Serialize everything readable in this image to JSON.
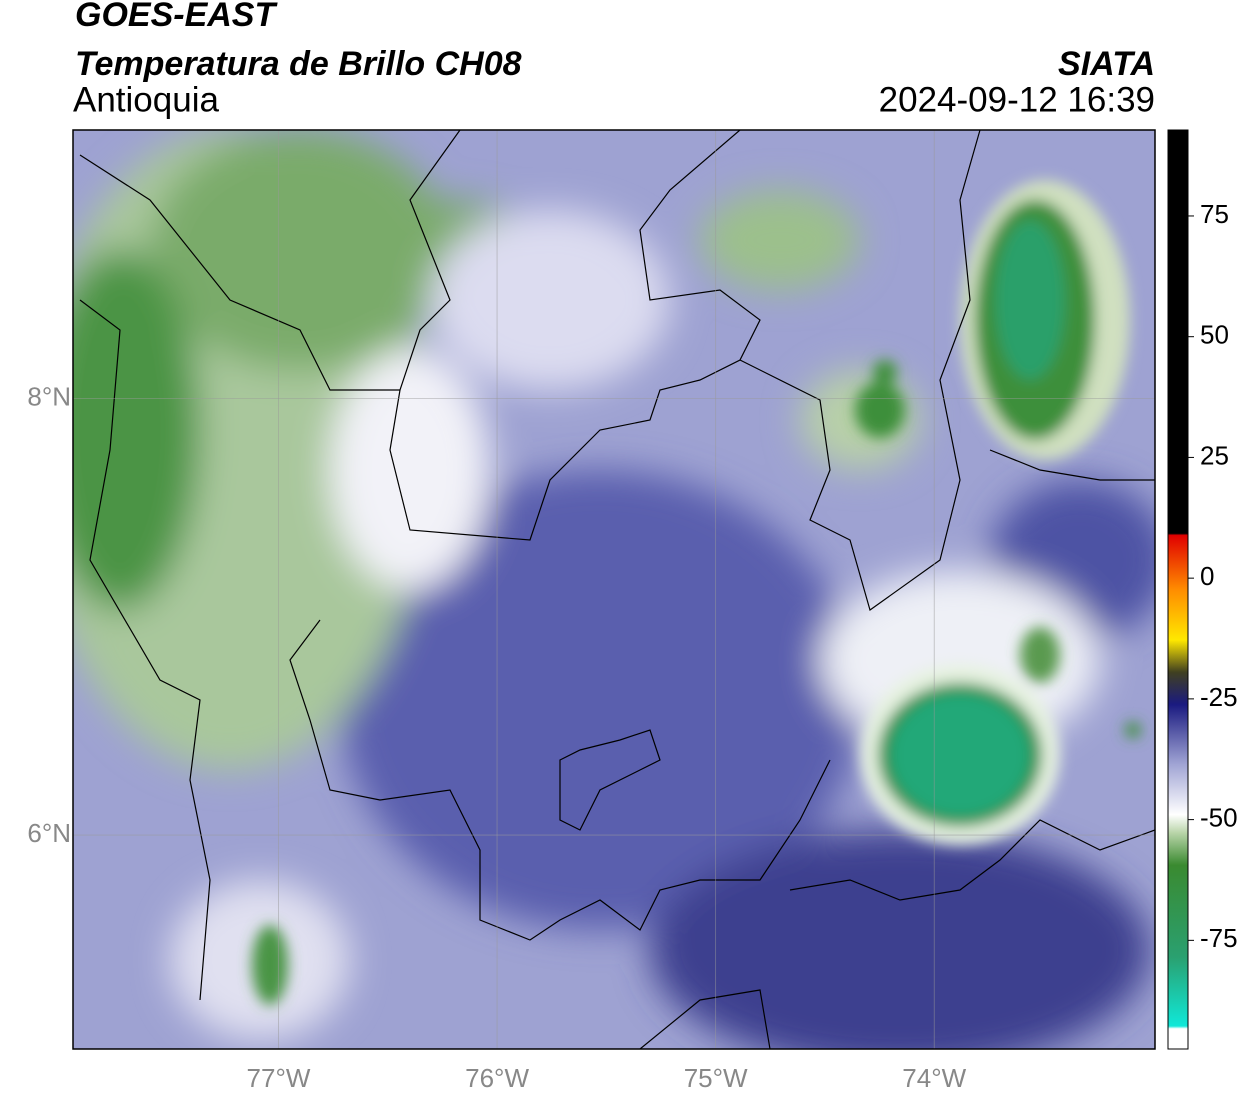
{
  "header": {
    "title": "GOES-EAST",
    "subtitle": "Temperatura de Brillo CH08",
    "region": "Antioquia",
    "source": "SIATA",
    "timestamp": "2024-09-12 16:39"
  },
  "map": {
    "lonlim": [
      -77.94,
      -72.99
    ],
    "latlim": [
      5.02,
      9.23
    ],
    "lon_ticks": [
      {
        "value": -77,
        "label": "77°W"
      },
      {
        "value": -76,
        "label": "76°W"
      },
      {
        "value": -75,
        "label": "75°W"
      },
      {
        "value": -74,
        "label": "74°W"
      }
    ],
    "lat_ticks": [
      {
        "value": 8,
        "label": "8°N"
      },
      {
        "value": 6,
        "label": "6°N"
      }
    ]
  },
  "colorbar": {
    "lim": [
      -97.5,
      92.8
    ],
    "ticks": [
      75,
      50,
      25,
      0,
      -25,
      -50,
      -75
    ]
  }
}
